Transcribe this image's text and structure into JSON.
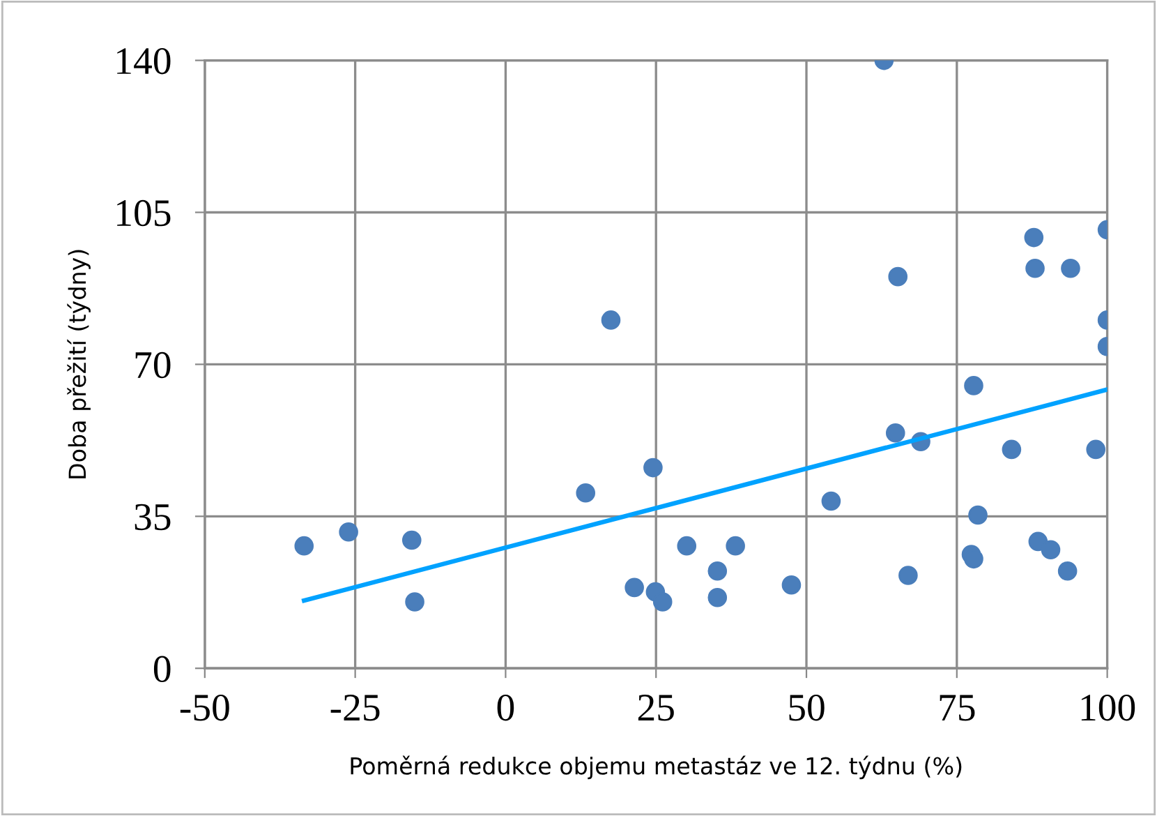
{
  "chart_data": {
    "type": "scatter",
    "xlabel": "Poměrná redukce objemu metastáz ve 12. týdnu (%)",
    "ylabel": "Doba přežití (týdny)",
    "xlim": [
      -50,
      100
    ],
    "xticks": [
      -50,
      -25,
      0,
      25,
      50,
      75,
      100
    ],
    "ylim": [
      0,
      140
    ],
    "yticks": [
      0,
      35,
      70,
      105,
      140
    ],
    "grid": true,
    "legend": false,
    "marker": "circle",
    "series": [
      {
        "color": "#4a7ebb",
        "x": [
          -33.5,
          -26.1,
          -15.6,
          -15.1,
          13.3,
          17.5,
          21.4,
          24.5,
          24.9,
          26.1,
          30.1,
          35.2,
          35.2,
          38.2,
          47.5,
          54.1,
          62.9,
          64.8,
          65.2,
          66.9,
          69.0,
          77.4,
          77.8,
          77.8,
          78.5,
          84.1,
          87.8,
          88.0,
          88.5,
          90.6,
          93.4,
          93.9,
          98.1,
          100,
          100,
          100
        ],
        "values": [
          28.2,
          31.4,
          29.5,
          15.3,
          40.4,
          80.2,
          18.6,
          46.2,
          17.6,
          15.3,
          28.2,
          22.4,
          16.3,
          28.2,
          19.2,
          38.5,
          140,
          54.2,
          90.2,
          21.4,
          52.2,
          26.2,
          25.2,
          65.1,
          35.3,
          50.4,
          99.2,
          92.1,
          29.2,
          27.3,
          22.4,
          92.1,
          50.4,
          101,
          80.2,
          74.1
        ]
      },
      {
        "type": "line",
        "color": "#00a2ff",
        "line_style": "solid",
        "marker": "none",
        "x": [
          -33.5,
          100
        ],
        "values": [
          15.6,
          64.2
        ]
      }
    ]
  }
}
